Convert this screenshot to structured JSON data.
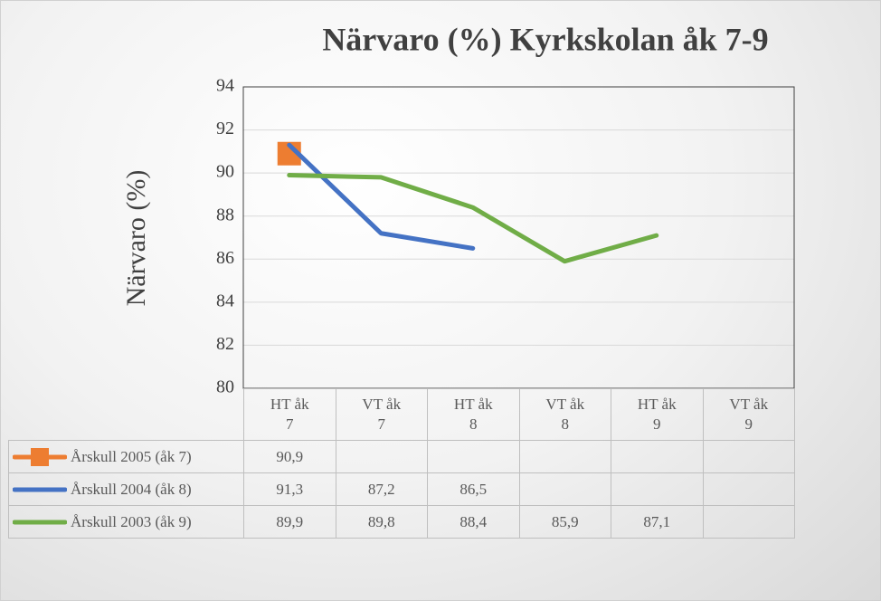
{
  "chart_data": {
    "type": "line",
    "title": "Närvaro (%) Kyrkskolan åk 7-9",
    "y_label": "Närvaro   (%)",
    "categories": [
      "HT åk 7",
      "VT åk 7",
      "HT åk 8",
      "VT åk 8",
      "HT åk 9",
      "VT åk 9"
    ],
    "ylim": [
      80,
      94
    ],
    "yticks": [
      80,
      82,
      84,
      86,
      88,
      90,
      92,
      94
    ],
    "grid": true,
    "series": [
      {
        "name": "Årskull 2005 (åk 7)",
        "color": "#ed7d31",
        "marker": "square",
        "values": [
          90.9,
          null,
          null,
          null,
          null,
          null
        ],
        "value_labels": [
          "90,9",
          null,
          null,
          null,
          null,
          null
        ]
      },
      {
        "name": "Årskull 2004 (åk 8)",
        "color": "#4472c4",
        "values": [
          91.3,
          87.2,
          86.5,
          null,
          null,
          null
        ],
        "value_labels": [
          "91,3",
          "87,2",
          "86,5",
          null,
          null,
          null
        ]
      },
      {
        "name": "Årskull 2003 (åk 9)",
        "color": "#70ad47",
        "values": [
          89.9,
          89.8,
          88.4,
          85.9,
          87.1,
          null
        ],
        "value_labels": [
          "89,9",
          "89,8",
          "88,4",
          "85,9",
          "87,1",
          null
        ]
      }
    ]
  }
}
